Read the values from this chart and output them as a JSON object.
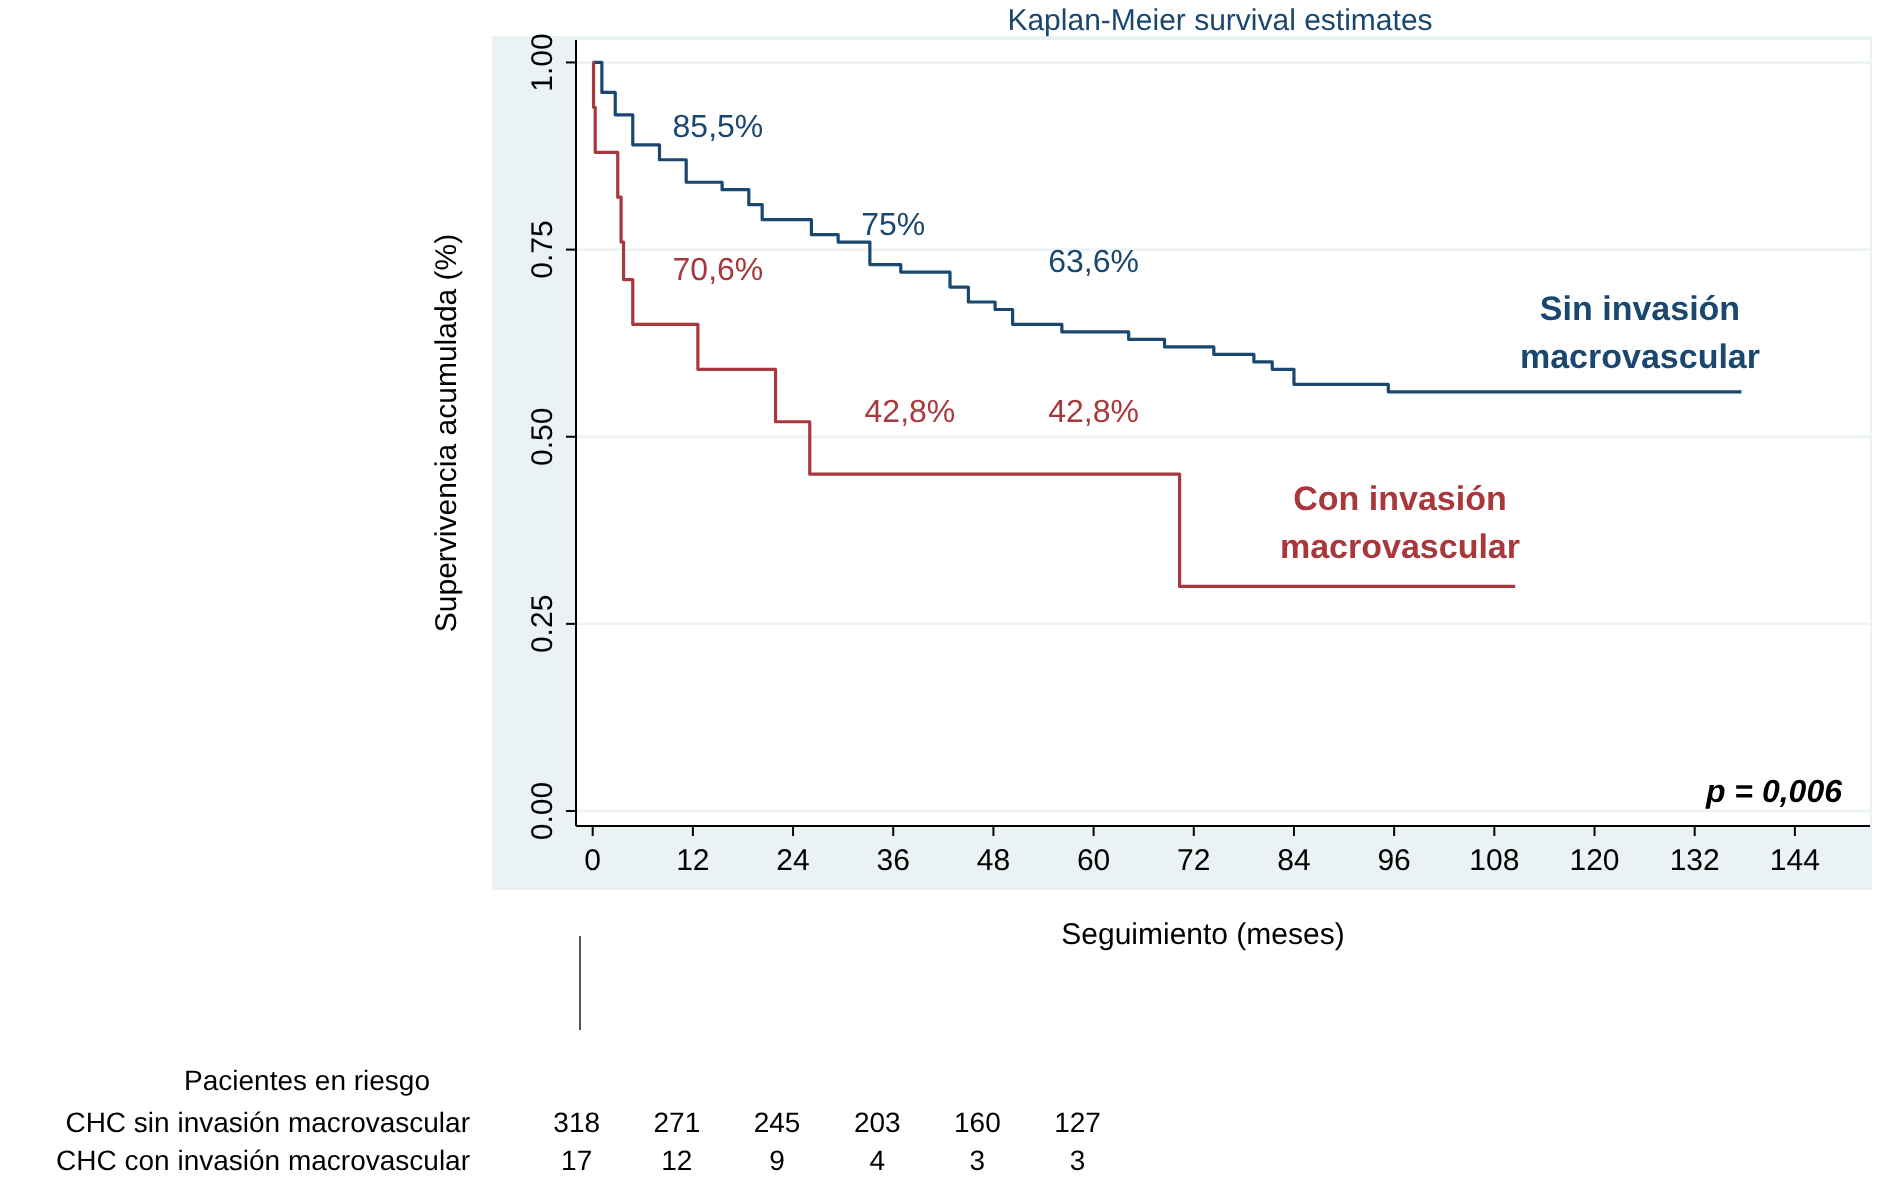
{
  "chart_data": {
    "type": "step",
    "title": "Kaplan-Meier survival estimates",
    "xlabel": "Seguimiento (meses)",
    "ylabel": "Supervivencia acumulada (%)",
    "xlim": [
      -2,
      153
    ],
    "xticks": [
      0,
      12,
      24,
      36,
      48,
      60,
      72,
      84,
      96,
      108,
      120,
      132,
      144
    ],
    "ylim": [
      -0.02,
      1.03
    ],
    "yticks": [
      {
        "value": 0,
        "label": "0.00"
      },
      {
        "value": 0.25,
        "label": "0.25"
      },
      {
        "value": 0.5,
        "label": "0.50"
      },
      {
        "value": 0.75,
        "label": "0.75"
      },
      {
        "value": 1,
        "label": "1.00"
      }
    ],
    "grid": "y",
    "legend": false,
    "series": [
      {
        "name": "Sin invasión macrovascular",
        "color": "#1a476f",
        "x": [
          0,
          1.1,
          2.7,
          4.8,
          8,
          11.2,
          15.5,
          18.7,
          20.3,
          24.6,
          26.2,
          29.4,
          33.2,
          36.9,
          41.2,
          42.8,
          45,
          48.2,
          50.3,
          56.2,
          63.2,
          64.2,
          68.5,
          70.7,
          74.4,
          79.2,
          81.4,
          84,
          94.8,
          95.3,
          137.6
        ],
        "values": [
          1,
          0.96,
          0.93,
          0.89,
          0.87,
          0.84,
          0.83,
          0.81,
          0.79,
          0.79,
          0.77,
          0.76,
          0.73,
          0.72,
          0.72,
          0.7,
          0.68,
          0.67,
          0.65,
          0.64,
          0.64,
          0.63,
          0.62,
          0.62,
          0.61,
          0.6,
          0.59,
          0.57,
          0.57,
          0.56,
          0.56
        ]
      },
      {
        "name": "Con invasión macrovascular",
        "color": "#a8383b",
        "x": [
          0,
          0.1,
          0.3,
          3,
          3.4,
          3.7,
          4.8,
          12.6,
          21.9,
          26,
          70.3,
          110.5
        ],
        "values": [
          1,
          0.94,
          0.88,
          0.82,
          0.76,
          0.71,
          0.65,
          0.59,
          0.52,
          0.45,
          0.3,
          0.3
        ]
      }
    ],
    "annotations": [
      "85,5%",
      "75%",
      "63,6%",
      "70,6%",
      "42,8%",
      "42,8%",
      "p = 0,006",
      "Pacientes en riesgo",
      "CHC sin invasión macrovascular",
      "318",
      "271",
      "245",
      "203",
      "160",
      "127",
      "CHC con invasión macrovascular",
      "17",
      "12",
      "9",
      "4",
      "3",
      "3"
    ]
  }
}
